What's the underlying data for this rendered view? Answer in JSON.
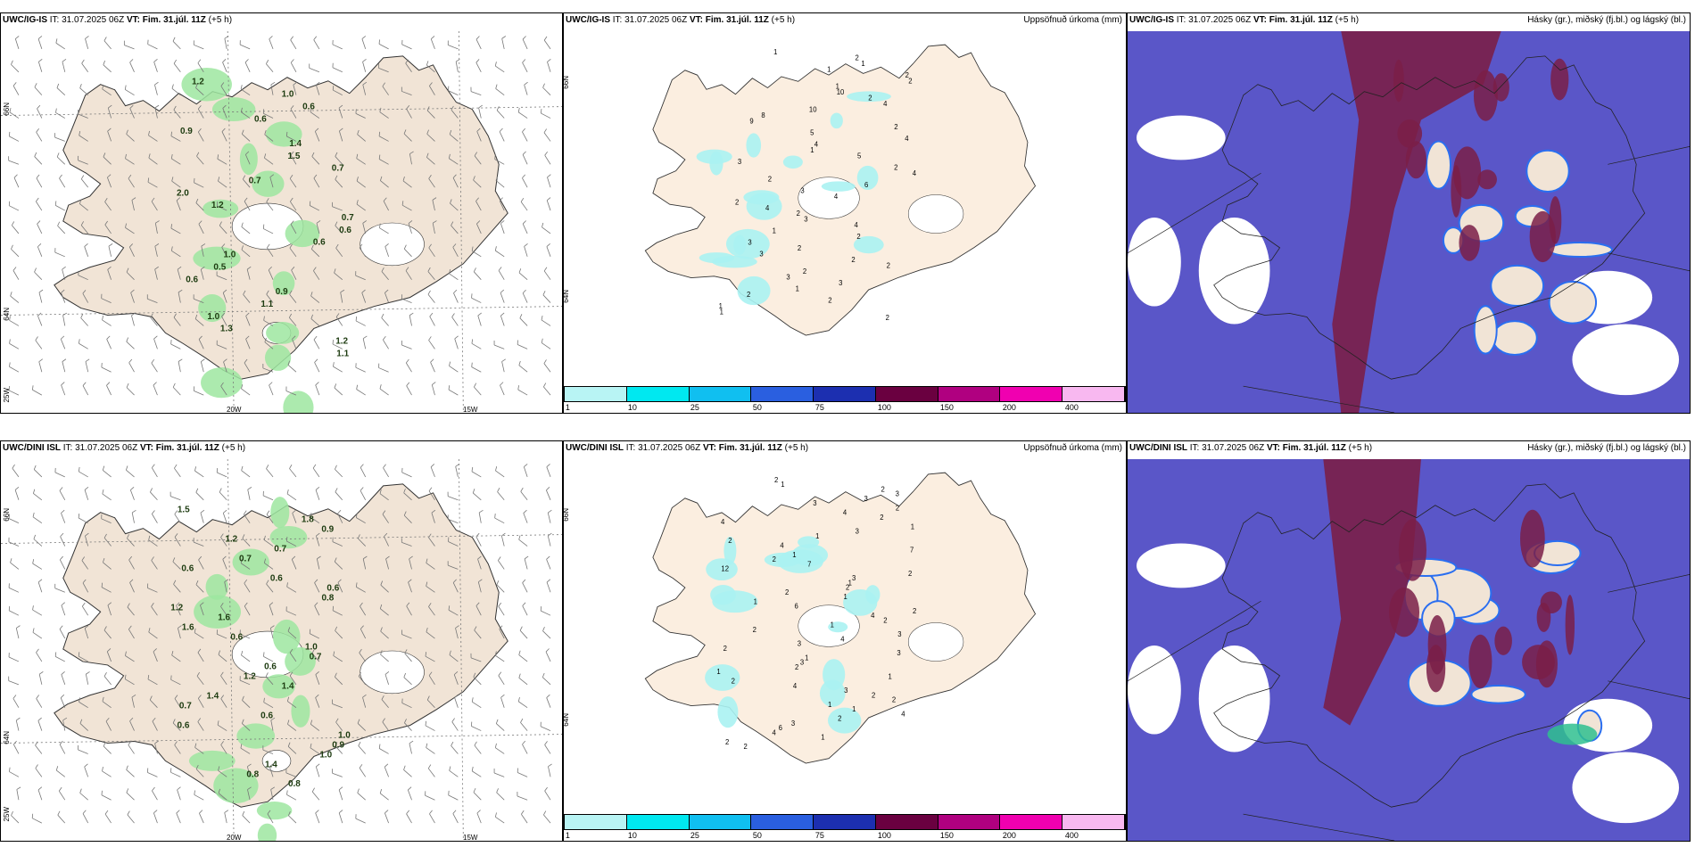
{
  "panels": [
    {
      "id": "p1",
      "model": "UWC/IG-IS",
      "it": "IT: 31.07.2025 06Z",
      "vt_label": "VT:",
      "vt": "Fim. 31.júl. 11Z",
      "lead": "(+5 h)",
      "right_title": ""
    },
    {
      "id": "p2",
      "model": "UWC/IG-IS",
      "it": "IT: 31.07.2025 06Z",
      "vt_label": "VT:",
      "vt": "Fim. 31.júl. 11Z",
      "lead": "(+5 h)",
      "right_title": "Uppsöfnuð úrkoma (mm)"
    },
    {
      "id": "p3",
      "model": "UWC/IG-IS",
      "it": "IT: 31.07.2025 06Z",
      "vt_label": "VT:",
      "vt": "Fim. 31.júl. 11Z",
      "lead": "(+5 h)",
      "right_title": "Hásky (gr.), miðský (fj.bl.) og lágský (bl.)"
    },
    {
      "id": "p4",
      "model": "UWC/DINI ISL",
      "it": "IT: 31.07.2025 06Z",
      "vt_label": "VT:",
      "vt": "Fim. 31.júl. 11Z",
      "lead": "(+5 h)",
      "right_title": ""
    },
    {
      "id": "p5",
      "model": "UWC/DINI ISL",
      "it": "IT: 31.07.2025 06Z",
      "vt_label": "VT:",
      "vt": "Fim. 31.júl. 11Z",
      "lead": "(+5 h)",
      "right_title": "Uppsöfnuð úrkoma (mm)"
    },
    {
      "id": "p6",
      "model": "UWC/DINI ISL",
      "it": "IT: 31.07.2025 06Z",
      "vt_label": "VT:",
      "vt": "Fim. 31.júl. 11Z",
      "lead": "(+5 h)",
      "right_title": "Hásky (gr.), miðský (fj.bl.) og lágský (bl.)"
    }
  ],
  "axis_labels": {
    "lat66": "66N",
    "lat64": "64N",
    "lon25": "25W",
    "lon20": "20W",
    "lon15": "15W"
  },
  "precip_scale": {
    "labels": [
      "1",
      "10",
      "25",
      "50",
      "75",
      "100",
      "150",
      "200",
      "400"
    ],
    "colors": [
      "#b8f4f4",
      "#00e8f0",
      "#10bff0",
      "#2a5fe0",
      "#1c2fb0",
      "#6a0040",
      "#b00080",
      "#f000b0",
      "#f8b8f0"
    ]
  },
  "wind_labels_top": [
    "1.2",
    "1.0",
    "0.6",
    "0.6",
    "0.9",
    "1.4",
    "1.5",
    "0.7",
    "0.7",
    "2.0",
    "1.2",
    "0.7",
    "0.6",
    "0.6",
    "1.0",
    "0.5",
    "0.6",
    "0.9",
    "1.1",
    "1.0",
    "1.3",
    "1.2",
    "1.1"
  ],
  "wind_labels_bottom": [
    "1.5",
    "1.8",
    "0.9",
    "1.2",
    "0.7",
    "0.7",
    "0.6",
    "0.6",
    "0.6",
    "0.8",
    "1.2",
    "1.6",
    "1.6",
    "0.6",
    "1.0",
    "0.7",
    "0.6",
    "1.2",
    "1.4",
    "1.4",
    "0.7",
    "0.6",
    "0.6",
    "1.0",
    "0.9",
    "1.0",
    "1.4",
    "0.8",
    "0.8"
  ],
  "precip_labels_top": [
    "1",
    "2",
    "1",
    "1",
    "2",
    "2",
    "1",
    "10",
    "2",
    "4",
    "10",
    "8",
    "9",
    "2",
    "5",
    "4",
    "4",
    "1",
    "5",
    "3",
    "2",
    "4",
    "2",
    "6",
    "3",
    "4",
    "2",
    "4",
    "2",
    "3",
    "4",
    "1",
    "2",
    "3",
    "2",
    "3",
    "2",
    "2",
    "2",
    "3",
    "3",
    "1",
    "2",
    "2",
    "1",
    "1",
    "2"
  ],
  "precip_labels_bottom": [
    "2",
    "1",
    "2",
    "3",
    "3",
    "3",
    "2",
    "4",
    "2",
    "4",
    "1",
    "3",
    "1",
    "2",
    "4",
    "7",
    "1",
    "2",
    "7",
    "12",
    "2",
    "3",
    "1",
    "2",
    "2",
    "1",
    "1",
    "6",
    "2",
    "4",
    "2",
    "1",
    "2",
    "3",
    "4",
    "3",
    "2",
    "3",
    "1",
    "3",
    "2",
    "1",
    "1",
    "2",
    "4",
    "3",
    "2",
    "2",
    "1",
    "1",
    "4",
    "2",
    "3",
    "6",
    "4",
    "1",
    "2",
    "2"
  ],
  "colors": {
    "land": "#f1e4d6",
    "sea": "#ffffff",
    "cloud_low": "#5a56c8",
    "cloud_high": "#7a1f48",
    "cloud_mid": "#2a6ef0",
    "precip_green": "#9ee6a0",
    "precip_dark": "#1d5a20"
  }
}
